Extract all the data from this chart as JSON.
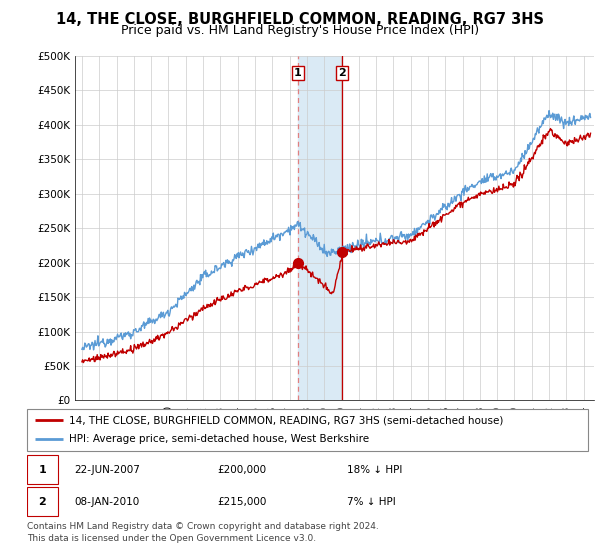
{
  "title": "14, THE CLOSE, BURGHFIELD COMMON, READING, RG7 3HS",
  "subtitle": "Price paid vs. HM Land Registry's House Price Index (HPI)",
  "ylabel_ticks": [
    "£0",
    "£50K",
    "£100K",
    "£150K",
    "£200K",
    "£250K",
    "£300K",
    "£350K",
    "£400K",
    "£450K",
    "£500K"
  ],
  "ytick_values": [
    0,
    50000,
    100000,
    150000,
    200000,
    250000,
    300000,
    350000,
    400000,
    450000,
    500000
  ],
  "ylim": [
    0,
    500000
  ],
  "xlim_start": 1994.6,
  "xlim_end": 2024.6,
  "hpi_color": "#5b9bd5",
  "price_color": "#c00000",
  "sale1_date": 2007.47,
  "sale1_price": 200000,
  "sale2_date": 2010.02,
  "sale2_price": 215000,
  "sale1_label": "1",
  "sale2_label": "2",
  "shade_color": "#daeaf5",
  "vline1_color": "#e06060",
  "vline2_color": "#c00000",
  "legend1": "14, THE CLOSE, BURGHFIELD COMMON, READING, RG7 3HS (semi-detached house)",
  "legend2": "HPI: Average price, semi-detached house, West Berkshire",
  "footnote": "Contains HM Land Registry data © Crown copyright and database right 2024.\nThis data is licensed under the Open Government Licence v3.0.",
  "title_fontsize": 10.5,
  "subtitle_fontsize": 9,
  "tick_fontsize": 7.5,
  "legend_fontsize": 7.5,
  "annot_fontsize": 7.5,
  "footnote_fontsize": 6.5
}
